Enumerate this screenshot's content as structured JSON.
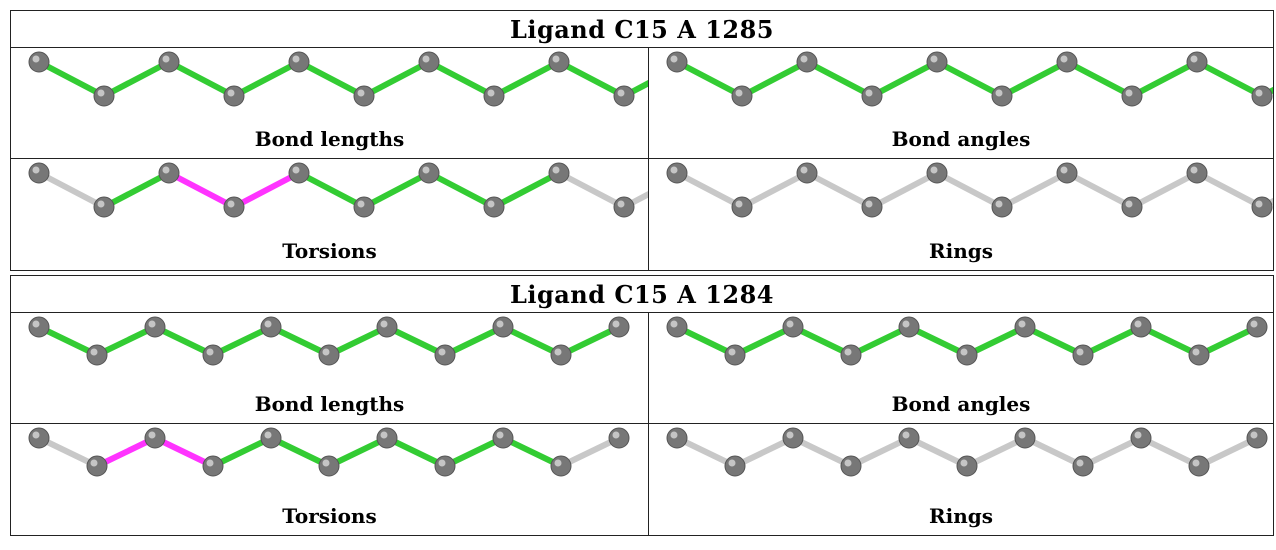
{
  "colors": {
    "ok": "#33cc33",
    "outlier": "#ff33ff",
    "na": "#c8c8c8",
    "atom": "#777777"
  },
  "panels": [
    {
      "title": "Ligand C15 A 1285",
      "cells": [
        {
          "label": "Bond lengths",
          "bonds": [
            "ok",
            "ok",
            "ok",
            "ok",
            "ok",
            "ok",
            "ok",
            "ok",
            "ok",
            "ok"
          ]
        },
        {
          "label": "Bond angles",
          "bonds": [
            "ok",
            "ok",
            "ok",
            "ok",
            "ok",
            "ok",
            "ok",
            "ok",
            "ok",
            "ok"
          ]
        },
        {
          "label": "Torsions",
          "bonds": [
            "na",
            "ok",
            "outlier",
            "outlier",
            "ok",
            "ok",
            "ok",
            "ok",
            "na",
            "na"
          ]
        },
        {
          "label": "Rings",
          "bonds": [
            "na",
            "na",
            "na",
            "na",
            "na",
            "na",
            "na",
            "na",
            "na",
            "na"
          ]
        }
      ]
    },
    {
      "title": "Ligand C15 A 1284",
      "cells": [
        {
          "label": "Bond lengths",
          "bonds": [
            "ok",
            "ok",
            "ok",
            "ok",
            "ok",
            "ok",
            "ok",
            "ok",
            "ok",
            "ok"
          ]
        },
        {
          "label": "Bond angles",
          "bonds": [
            "ok",
            "ok",
            "ok",
            "ok",
            "ok",
            "ok",
            "ok",
            "ok",
            "ok",
            "ok"
          ]
        },
        {
          "label": "Torsions",
          "bonds": [
            "na",
            "outlier",
            "outlier",
            "ok",
            "ok",
            "ok",
            "ok",
            "ok",
            "ok",
            "na"
          ]
        },
        {
          "label": "Rings",
          "bonds": [
            "na",
            "na",
            "na",
            "na",
            "na",
            "na",
            "na",
            "na",
            "na",
            "na"
          ]
        }
      ]
    }
  ]
}
